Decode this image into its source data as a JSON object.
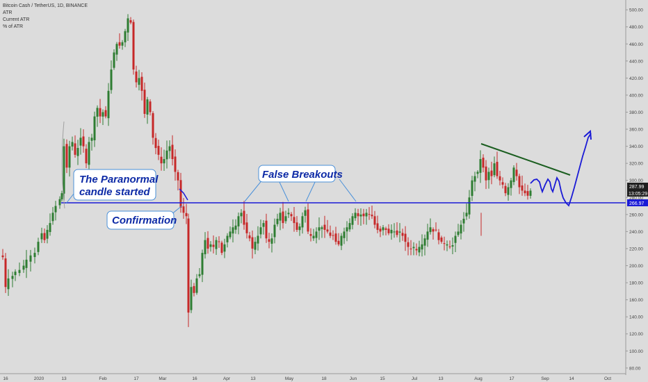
{
  "legend": {
    "title": "Bitcoin Cash / TetherUS, 1D, BINANCE",
    "indicator": "ATR",
    "current": "Current ATR",
    "percent": "% of ATR"
  },
  "colors": {
    "background": "#dcdcdc",
    "up": "#2e7d32",
    "down": "#c62828",
    "annotation": "#1a1ad6",
    "trendline": "#1b5e20",
    "callout_border": "#4a90d9",
    "callout_text": "#0d2aa6"
  },
  "annotations": {
    "paranormal": "The Paranormal candle started",
    "confirmation": "Confirmation",
    "false_breakouts": "False Breakouts"
  },
  "price_tags": {
    "last_price": "287.99",
    "countdown": "13:05:29",
    "support": "266.97"
  },
  "chart_data": {
    "type": "candlestick",
    "title": "Bitcoin Cash / TetherUS, 1D, BINANCE",
    "y_axis": {
      "position": "right",
      "ylim": [
        75,
        505
      ],
      "ticks": [
        "80.00",
        "100.00",
        "120.00",
        "140.00",
        "160.00",
        "180.00",
        "200.00",
        "220.00",
        "240.00",
        "260.00",
        "280.00",
        "300.00",
        "320.00",
        "340.00",
        "360.00",
        "380.00",
        "400.00",
        "420.00",
        "440.00",
        "460.00",
        "480.00",
        "500.00"
      ]
    },
    "x_axis": {
      "position": "bottom",
      "ticks": [
        "16",
        "2020",
        "13",
        "Feb",
        "17",
        "Mar",
        "16",
        "Apr",
        "13",
        "May",
        "18",
        "Jun",
        "15",
        "Jul",
        "13",
        "Aug",
        "17",
        "Sep",
        "14",
        "Oct"
      ]
    },
    "support_level": 266.97,
    "ohlc_path": [
      [
        1,
        212
      ],
      [
        4,
        210
      ],
      [
        8,
        175
      ],
      [
        12,
        185
      ],
      [
        18,
        188
      ],
      [
        22,
        193
      ],
      [
        28,
        195
      ],
      [
        34,
        200
      ],
      [
        38,
        207
      ],
      [
        44,
        212
      ],
      [
        50,
        215
      ],
      [
        55,
        228
      ],
      [
        60,
        238
      ],
      [
        64,
        230
      ],
      [
        68,
        242
      ],
      [
        72,
        250
      ],
      [
        76,
        262
      ],
      [
        80,
        270
      ],
      [
        86,
        278
      ],
      [
        89,
        285
      ],
      [
        92,
        340
      ],
      [
        96,
        315
      ],
      [
        100,
        340
      ],
      [
        104,
        345
      ],
      [
        108,
        330
      ],
      [
        112,
        338
      ],
      [
        116,
        350
      ],
      [
        120,
        340
      ],
      [
        124,
        320
      ],
      [
        128,
        345
      ],
      [
        132,
        350
      ],
      [
        136,
        375
      ],
      [
        140,
        385
      ],
      [
        144,
        375
      ],
      [
        148,
        380
      ],
      [
        152,
        375
      ],
      [
        156,
        405
      ],
      [
        160,
        430
      ],
      [
        164,
        450
      ],
      [
        168,
        460
      ],
      [
        172,
        458
      ],
      [
        176,
        462
      ],
      [
        180,
        475
      ],
      [
        184,
        490
      ],
      [
        188,
        485
      ],
      [
        192,
        430
      ],
      [
        196,
        415
      ],
      [
        200,
        420
      ],
      [
        204,
        405
      ],
      [
        208,
        378
      ],
      [
        212,
        395
      ],
      [
        216,
        380
      ],
      [
        220,
        350
      ],
      [
        224,
        338
      ],
      [
        228,
        330
      ],
      [
        232,
        320
      ],
      [
        236,
        325
      ],
      [
        240,
        335
      ],
      [
        244,
        340
      ],
      [
        248,
        325
      ],
      [
        252,
        310
      ],
      [
        256,
        300
      ],
      [
        260,
        268
      ],
      [
        264,
        262
      ],
      [
        268,
        258
      ],
      [
        271,
        145
      ],
      [
        275,
        175
      ],
      [
        279,
        168
      ],
      [
        283,
        185
      ],
      [
        287,
        190
      ],
      [
        291,
        215
      ],
      [
        295,
        230
      ],
      [
        299,
        220
      ],
      [
        303,
        225
      ],
      [
        307,
        222
      ],
      [
        311,
        230
      ],
      [
        315,
        228
      ],
      [
        319,
        215
      ],
      [
        323,
        225
      ],
      [
        327,
        235
      ],
      [
        331,
        240
      ],
      [
        335,
        245
      ],
      [
        339,
        247
      ],
      [
        343,
        258
      ],
      [
        347,
        262
      ],
      [
        351,
        248
      ],
      [
        355,
        238
      ],
      [
        359,
        232
      ],
      [
        363,
        220
      ],
      [
        367,
        228
      ],
      [
        371,
        235
      ],
      [
        375,
        245
      ],
      [
        379,
        250
      ],
      [
        383,
        232
      ],
      [
        387,
        228
      ],
      [
        391,
        232
      ],
      [
        395,
        248
      ],
      [
        399,
        255
      ],
      [
        403,
        262
      ],
      [
        407,
        250
      ],
      [
        411,
        258
      ],
      [
        415,
        262
      ],
      [
        419,
        258
      ],
      [
        423,
        250
      ],
      [
        427,
        242
      ],
      [
        431,
        246
      ],
      [
        435,
        258
      ],
      [
        439,
        265
      ],
      [
        443,
        240
      ],
      [
        447,
        235
      ],
      [
        451,
        235
      ],
      [
        455,
        240
      ],
      [
        459,
        245
      ],
      [
        463,
        245
      ],
      [
        467,
        242
      ],
      [
        471,
        240
      ],
      [
        475,
        235
      ],
      [
        479,
        235
      ],
      [
        483,
        228
      ],
      [
        487,
        225
      ],
      [
        491,
        235
      ],
      [
        495,
        240
      ],
      [
        499,
        245
      ],
      [
        503,
        250
      ],
      [
        507,
        258
      ],
      [
        511,
        262
      ],
      [
        515,
        258
      ],
      [
        519,
        260
      ],
      [
        523,
        258
      ],
      [
        527,
        262
      ],
      [
        531,
        260
      ],
      [
        535,
        258
      ],
      [
        539,
        248
      ],
      [
        543,
        242
      ],
      [
        547,
        240
      ],
      [
        551,
        245
      ],
      [
        555,
        242
      ],
      [
        559,
        238
      ],
      [
        563,
        242
      ],
      [
        567,
        240
      ],
      [
        571,
        236
      ],
      [
        575,
        240
      ],
      [
        579,
        235
      ],
      [
        583,
        228
      ],
      [
        587,
        222
      ],
      [
        591,
        220
      ],
      [
        595,
        222
      ],
      [
        599,
        218
      ],
      [
        603,
        222
      ],
      [
        607,
        225
      ],
      [
        611,
        232
      ],
      [
        615,
        240
      ],
      [
        619,
        245
      ],
      [
        623,
        240
      ],
      [
        627,
        242
      ],
      [
        631,
        230
      ],
      [
        635,
        228
      ],
      [
        639,
        226
      ],
      [
        643,
        225
      ],
      [
        647,
        222
      ],
      [
        651,
        224
      ],
      [
        655,
        235
      ],
      [
        659,
        240
      ],
      [
        663,
        248
      ],
      [
        667,
        255
      ],
      [
        671,
        262
      ],
      [
        675,
        280
      ],
      [
        679,
        300
      ],
      [
        683,
        305
      ],
      [
        687,
        310
      ],
      [
        691,
        325
      ],
      [
        695,
        315
      ],
      [
        699,
        300
      ],
      [
        703,
        310
      ],
      [
        707,
        305
      ],
      [
        711,
        320
      ],
      [
        715,
        305
      ],
      [
        719,
        300
      ],
      [
        723,
        295
      ],
      [
        727,
        285
      ],
      [
        731,
        292
      ],
      [
        735,
        300
      ],
      [
        739,
        315
      ],
      [
        743,
        305
      ],
      [
        747,
        292
      ],
      [
        751,
        288
      ],
      [
        755,
        285
      ],
      [
        759,
        282
      ],
      [
        763,
        288
      ]
    ]
  }
}
